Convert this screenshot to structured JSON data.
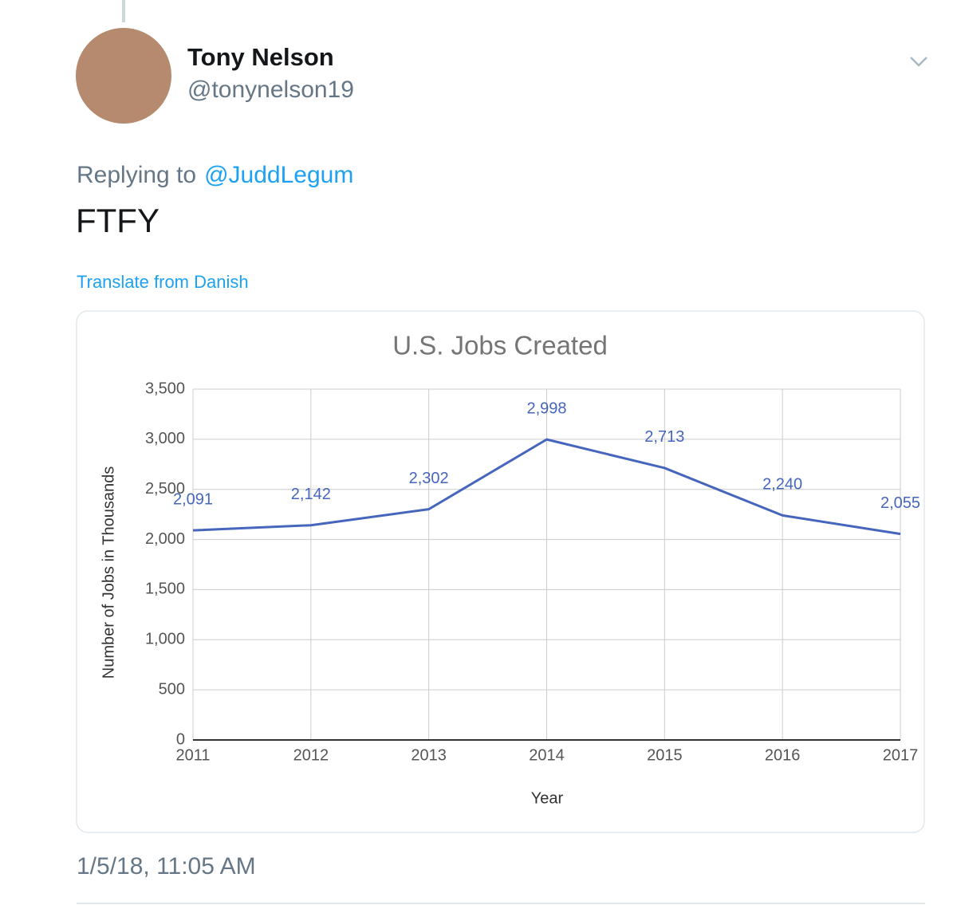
{
  "tweet": {
    "name": "Tony Nelson",
    "handle": "@tonynelson19",
    "replying_prefix": "Replying to",
    "reply_to": "@JuddLegum",
    "text": "FTFY",
    "translate": "Translate from Danish",
    "timestamp": "1/5/18, 11:05 AM"
  },
  "chart_data": {
    "type": "line",
    "title": "U.S. Jobs Created",
    "x_label": "Year",
    "y_label": "Number of Jobs in Thousands",
    "x": [
      2011,
      2012,
      2013,
      2014,
      2015,
      2016,
      2017
    ],
    "values": [
      2091,
      2142,
      2302,
      2998,
      2713,
      2240,
      2055
    ],
    "value_labels": [
      "2,091",
      "2,142",
      "2,302",
      "2,998",
      "2,713",
      "2,240",
      "2,055"
    ],
    "color": "#4666bd",
    "xlim": [
      2011,
      2017
    ],
    "xticks": [
      2011,
      2012,
      2013,
      2014,
      2015,
      2016,
      2017
    ],
    "ylim": [
      0,
      3500
    ],
    "yticks": [
      0,
      500,
      {
        "value": 1000,
        "label": "1,000"
      },
      {
        "value": 1500,
        "label": "1,500"
      },
      {
        "value": 2000,
        "label": "2,000"
      },
      {
        "value": 2500,
        "label": "2,500"
      },
      {
        "value": 3000,
        "label": "3,000"
      },
      {
        "value": 3500,
        "label": "3,500"
      }
    ],
    "grid": true
  }
}
